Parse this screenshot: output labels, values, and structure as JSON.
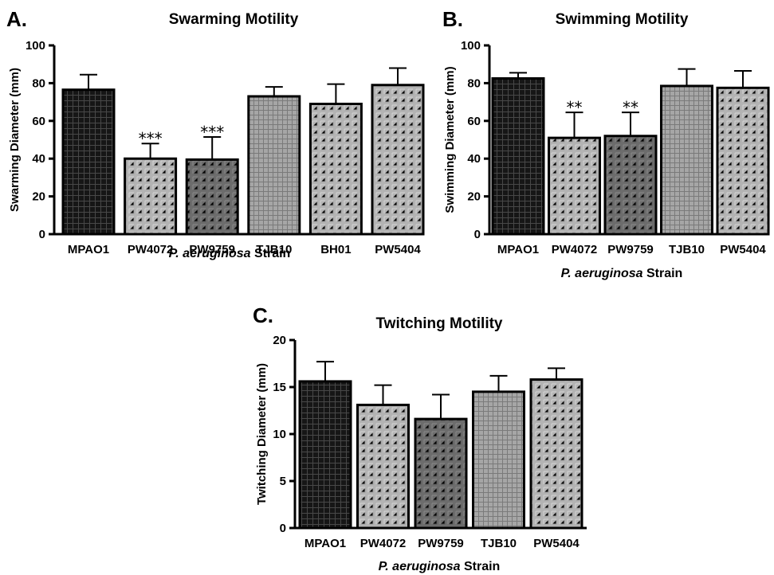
{
  "chart_data": [
    {
      "panel": "A.",
      "type": "bar",
      "title": "Swarming Motility",
      "ylabel": "Swarming Diameter (mm)",
      "xlabel_italic": "P. aeruginosa",
      "xlabel_rest": " Strain",
      "ylim": [
        0,
        100
      ],
      "yticks": [
        "0",
        "20",
        "40",
        "60",
        "80",
        "100"
      ],
      "categories": [
        "MPAO1",
        "PW4072",
        "PW9759",
        "TJB10",
        "BH01",
        "PW5404"
      ],
      "values": [
        76.5,
        40,
        39.5,
        73,
        69,
        79
      ],
      "errors": [
        8,
        8,
        12,
        5,
        10.5,
        9
      ],
      "significance": [
        "",
        "***",
        "***",
        "",
        "",
        ""
      ],
      "patterns": [
        "p0",
        "p1",
        "p2",
        "p3",
        "p1",
        "p1"
      ]
    },
    {
      "panel": "B.",
      "type": "bar",
      "title": "Swimming Motility",
      "ylabel": "Swimming Diameter (mm)",
      "xlabel_italic": "P. aeruginosa",
      "xlabel_rest": " Strain",
      "ylim": [
        0,
        100
      ],
      "yticks": [
        "0",
        "20",
        "40",
        "60",
        "80",
        "100"
      ],
      "categories": [
        "MPAO1",
        "PW4072",
        "PW9759",
        "TJB10",
        "PW5404"
      ],
      "values": [
        82.5,
        51,
        52,
        78.5,
        77.5
      ],
      "errors": [
        3,
        13.5,
        12.5,
        9,
        9
      ],
      "significance": [
        "",
        "**",
        "**",
        "",
        ""
      ],
      "patterns": [
        "p0",
        "p1",
        "p2",
        "p3",
        "p1"
      ]
    },
    {
      "panel": "C.",
      "type": "bar",
      "title": "Twitching Motility",
      "ylabel": "Twitching Diameter (mm)",
      "xlabel_italic": "P. aeruginosa",
      "xlabel_rest": " Strain",
      "ylim": [
        0,
        20
      ],
      "yticks": [
        "0",
        "5",
        "10",
        "15",
        "20"
      ],
      "categories": [
        "MPAO1",
        "PW4072",
        "PW9759",
        "TJB10",
        "PW5404"
      ],
      "values": [
        15.6,
        13.1,
        11.6,
        14.5,
        15.8
      ],
      "errors": [
        2.1,
        2.1,
        2.6,
        1.7,
        1.2
      ],
      "significance": [
        "",
        "",
        "",
        "",
        ""
      ],
      "patterns": [
        "p0",
        "p1",
        "p2",
        "p3",
        "p1"
      ]
    }
  ],
  "colors": {
    "bar_dark": "#1a1a1a",
    "bar_light": "#b4b4b4",
    "bar_mid": "#6e6e6e",
    "bar_grid": "#9a9a9a",
    "axis": "#000000"
  }
}
